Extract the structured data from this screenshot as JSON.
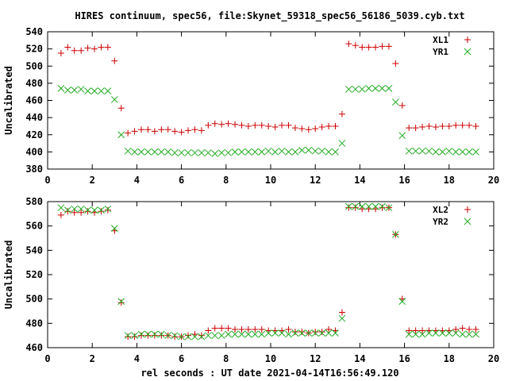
{
  "title": "HIRES continuum, spec56, file:Skynet_59318_spec56_56186_5039.cyb.txt",
  "xlabel": "rel seconds : UT date 2021-04-14T16:56:49.120",
  "colors": {
    "red": "#cc0000",
    "green": "#22aa22",
    "axes": "#000000"
  },
  "chart_data": [
    {
      "type": "scatter",
      "xlim": [
        0,
        20
      ],
      "ylim": [
        380,
        540
      ],
      "x_ticks": [
        "0",
        "2",
        "4",
        "6",
        "8",
        "10",
        "12",
        "14",
        "16",
        "18",
        "20"
      ],
      "y_ticks": [
        "380",
        "400",
        "420",
        "440",
        "460",
        "480",
        "500",
        "520",
        "540"
      ],
      "ylabel": "Uncalibrated",
      "legend_position": "top-right",
      "x": [
        0.6,
        0.9,
        1.2,
        1.5,
        1.8,
        2.1,
        2.4,
        2.7,
        3.0,
        3.3,
        3.6,
        3.9,
        4.2,
        4.5,
        4.8,
        5.1,
        5.4,
        5.7,
        6.0,
        6.3,
        6.6,
        6.9,
        7.2,
        7.5,
        7.8,
        8.1,
        8.4,
        8.7,
        9.0,
        9.3,
        9.6,
        9.9,
        10.2,
        10.5,
        10.8,
        11.1,
        11.4,
        11.7,
        12.0,
        12.3,
        12.6,
        12.9,
        13.2,
        13.5,
        13.8,
        14.1,
        14.4,
        14.7,
        15.0,
        15.3,
        15.6,
        15.9,
        16.2,
        16.5,
        16.8,
        17.1,
        17.4,
        17.7,
        18.0,
        18.3,
        18.6,
        18.9,
        19.2
      ],
      "series": [
        {
          "name": "XL1",
          "marker": "plus",
          "color": "#cc0000",
          "values": [
            515,
            522,
            518,
            518,
            521,
            520,
            522,
            522,
            506,
            451,
            422,
            424,
            426,
            426,
            424,
            426,
            426,
            424,
            423,
            425,
            426,
            425,
            431,
            433,
            432,
            433,
            432,
            431,
            430,
            431,
            431,
            430,
            429,
            431,
            431,
            428,
            427,
            426,
            427,
            429,
            430,
            430,
            444,
            526,
            524,
            522,
            522,
            522,
            523,
            523,
            503,
            454,
            428,
            428,
            429,
            430,
            429,
            430,
            430,
            431,
            431,
            431,
            430
          ]
        },
        {
          "name": "YR1",
          "marker": "x",
          "color": "#22aa22",
          "values": [
            474,
            472,
            472,
            473,
            471,
            471,
            471,
            471,
            461,
            420,
            401,
            400,
            400,
            400,
            400,
            400,
            400,
            399,
            399,
            399,
            399,
            399,
            399,
            398,
            399,
            399,
            400,
            400,
            400,
            400,
            400,
            401,
            400,
            401,
            400,
            400,
            402,
            402,
            401,
            401,
            400,
            400,
            410,
            473,
            473,
            473,
            474,
            474,
            474,
            474,
            458,
            419,
            401,
            401,
            401,
            401,
            400,
            400,
            401,
            400,
            400,
            400,
            400
          ]
        }
      ]
    },
    {
      "type": "scatter",
      "xlim": [
        0,
        20
      ],
      "ylim": [
        460,
        580
      ],
      "x_ticks": [
        "0",
        "2",
        "4",
        "6",
        "8",
        "10",
        "12",
        "14",
        "16",
        "18",
        "20"
      ],
      "y_ticks": [
        "460",
        "480",
        "500",
        "520",
        "540",
        "560",
        "580"
      ],
      "ylabel": "Uncalibrated",
      "legend_position": "top-right",
      "x": [
        0.6,
        0.9,
        1.2,
        1.5,
        1.8,
        2.1,
        2.4,
        2.7,
        3.0,
        3.3,
        3.6,
        3.9,
        4.2,
        4.5,
        4.8,
        5.1,
        5.4,
        5.7,
        6.0,
        6.3,
        6.6,
        6.9,
        7.2,
        7.5,
        7.8,
        8.1,
        8.4,
        8.7,
        9.0,
        9.3,
        9.6,
        9.9,
        10.2,
        10.5,
        10.8,
        11.1,
        11.4,
        11.7,
        12.0,
        12.3,
        12.6,
        12.9,
        13.2,
        13.5,
        13.8,
        14.1,
        14.4,
        14.7,
        15.0,
        15.3,
        15.6,
        15.9,
        16.2,
        16.5,
        16.8,
        17.1,
        17.4,
        17.7,
        18.0,
        18.3,
        18.6,
        18.9,
        19.2
      ],
      "series": [
        {
          "name": "XL2",
          "marker": "plus",
          "color": "#cc0000",
          "values": [
            569,
            572,
            571,
            571,
            572,
            571,
            572,
            573,
            556,
            497,
            469,
            469,
            470,
            470,
            470,
            470,
            470,
            469,
            469,
            470,
            471,
            470,
            474,
            476,
            476,
            476,
            475,
            475,
            475,
            475,
            475,
            474,
            474,
            474,
            475,
            473,
            473,
            472,
            473,
            473,
            475,
            474,
            489,
            575,
            575,
            574,
            574,
            574,
            575,
            575,
            553,
            500,
            474,
            474,
            474,
            474,
            474,
            474,
            474,
            475,
            476,
            475,
            475
          ]
        },
        {
          "name": "YR2",
          "marker": "x",
          "color": "#22aa22",
          "values": [
            575,
            573,
            574,
            574,
            573,
            573,
            573,
            574,
            558,
            498,
            470,
            470,
            471,
            471,
            471,
            471,
            470,
            470,
            469,
            469,
            469,
            469,
            470,
            470,
            470,
            471,
            471,
            471,
            471,
            471,
            471,
            472,
            472,
            472,
            471,
            472,
            472,
            472,
            472,
            472,
            472,
            472,
            484,
            576,
            576,
            576,
            576,
            576,
            576,
            575,
            553,
            498,
            471,
            471,
            471,
            472,
            472,
            472,
            472,
            472,
            471,
            471,
            471
          ]
        }
      ]
    }
  ]
}
